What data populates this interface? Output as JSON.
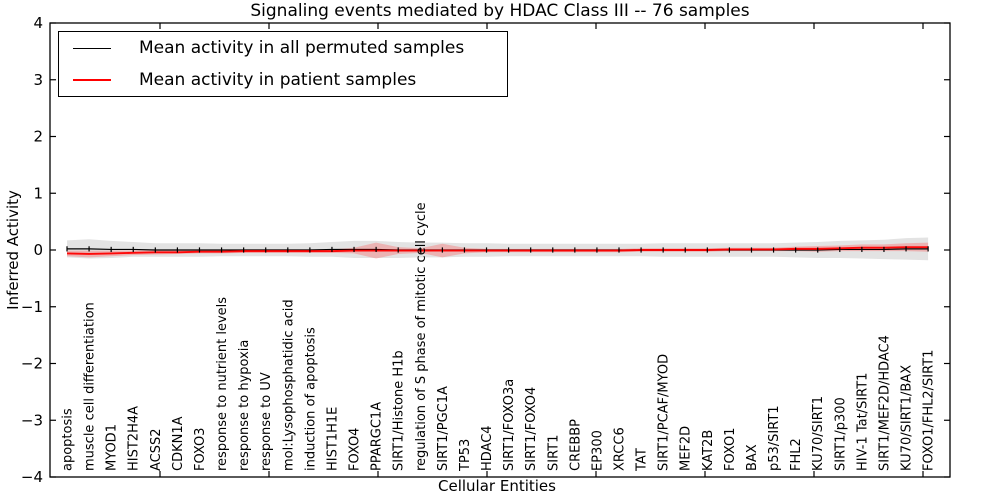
{
  "chart_data": {
    "type": "line",
    "title": "Signaling events mediated by HDAC Class III -- 76 samples",
    "xlabel": "Cellular Entities",
    "ylabel": "Inferred Activity",
    "ylim": [
      -4,
      4
    ],
    "yticks": [
      4,
      3,
      2,
      1,
      0,
      -1,
      -2,
      -3,
      -4
    ],
    "yticklabels": [
      "4",
      "3",
      "2",
      "1",
      "0",
      "−1",
      "−2",
      "−3",
      "−4"
    ],
    "grid": false,
    "legend_position": "upper left",
    "categories": [
      "apoptosis",
      "muscle cell differentiation",
      "MYOD1",
      "HIST2H4A",
      "ACSS2",
      "CDKN1A",
      "FOXO3",
      "response to nutrient levels",
      "response to hypoxia",
      "response to UV",
      "mol:Lysophosphatidic acid",
      "induction of apoptosis",
      "HIST1H1E",
      "FOXO4",
      "PPARGC1A",
      "SIRT1/Histone H1b",
      "regulation of S phase of mitotic cell cycle",
      "SIRT1/PGC1A",
      "TP53",
      "HDAC4",
      "SIRT1/FOXO3a",
      "SIRT1/FOXO4",
      "SIRT1",
      "CREBBP",
      "EP300",
      "XRCC6",
      "TAT",
      "SIRT1/PCAF/MYOD",
      "MEF2D",
      "KAT2B",
      "FOXO1",
      "BAX",
      "p53/SIRT1",
      "FHL2",
      "KU70/SIRT1",
      "SIRT1/p300",
      "HIV-1 Tat/SIRT1",
      "SIRT1/MEF2D/HDAC4",
      "KU70/SIRT1/BAX",
      "FOXO1/FHL2/SIRT1"
    ],
    "series": [
      {
        "name": "Mean activity in all permuted samples",
        "color": "#000000",
        "band_color": "#999999",
        "band_opacity": 0.28,
        "values": [
          0.02,
          0.02,
          0.01,
          0.01,
          0.0,
          0.0,
          0.0,
          0.0,
          0.0,
          0.0,
          0.0,
          0.0,
          0.01,
          0.01,
          0.01,
          0.0,
          0.0,
          0.0,
          0.0,
          0.0,
          0.0,
          0.0,
          0.0,
          0.0,
          0.0,
          0.0,
          0.0,
          0.0,
          0.0,
          0.0,
          0.0,
          0.0,
          0.0,
          0.0,
          0.0,
          0.01,
          0.01,
          0.01,
          0.02,
          0.02
        ],
        "band_halfwidth": [
          0.15,
          0.17,
          0.15,
          0.13,
          0.12,
          0.12,
          0.12,
          0.11,
          0.11,
          0.11,
          0.11,
          0.12,
          0.13,
          0.15,
          0.15,
          0.14,
          0.13,
          0.13,
          0.12,
          0.12,
          0.11,
          0.11,
          0.11,
          0.11,
          0.11,
          0.11,
          0.11,
          0.12,
          0.12,
          0.12,
          0.12,
          0.12,
          0.12,
          0.13,
          0.14,
          0.15,
          0.16,
          0.17,
          0.19,
          0.2
        ]
      },
      {
        "name": "Mean activity in patient samples",
        "color": "#ff0000",
        "band_color": "#ff4444",
        "band_opacity": 0.3,
        "values": [
          -0.06,
          -0.07,
          -0.06,
          -0.05,
          -0.04,
          -0.04,
          -0.03,
          -0.03,
          -0.02,
          -0.02,
          -0.02,
          -0.02,
          -0.02,
          -0.01,
          -0.01,
          -0.01,
          -0.01,
          -0.01,
          -0.01,
          -0.01,
          -0.01,
          -0.01,
          -0.01,
          -0.01,
          -0.01,
          -0.01,
          0.0,
          0.0,
          0.0,
          0.0,
          0.01,
          0.01,
          0.01,
          0.02,
          0.02,
          0.03,
          0.04,
          0.04,
          0.05,
          0.05
        ],
        "band_halfwidth": [
          0.05,
          0.06,
          0.05,
          0.04,
          0.04,
          0.03,
          0.03,
          0.03,
          0.03,
          0.03,
          0.03,
          0.03,
          0.03,
          0.05,
          0.14,
          0.06,
          0.04,
          0.12,
          0.05,
          0.03,
          0.03,
          0.03,
          0.03,
          0.03,
          0.03,
          0.03,
          0.03,
          0.03,
          0.03,
          0.03,
          0.03,
          0.03,
          0.03,
          0.04,
          0.05,
          0.05,
          0.06,
          0.06,
          0.07,
          0.08
        ]
      }
    ]
  }
}
